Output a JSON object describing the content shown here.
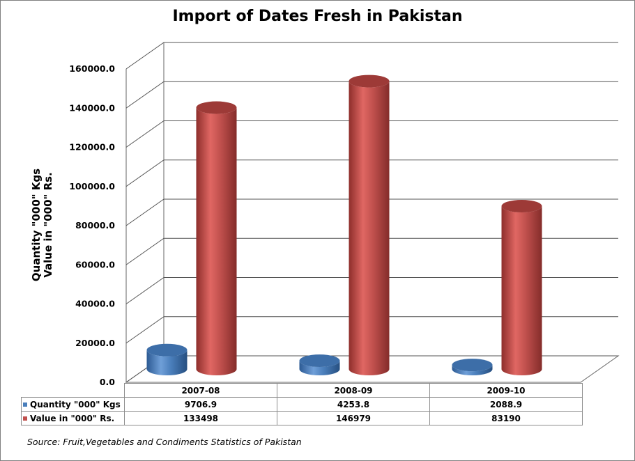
{
  "chart_data": {
    "type": "bar",
    "style": "3d-cylinder",
    "title": "Import of Dates Fresh in Pakistan",
    "ylabel_lines": [
      "Quantity \"000\" Kgs",
      "Value in \"000\" Rs."
    ],
    "xlabel": "",
    "categories": [
      "2007-08",
      "2008-09",
      "2009-10"
    ],
    "ylim": [
      0,
      160000
    ],
    "ytick_labels": [
      "0.0",
      "20000.0",
      "40000.0",
      "60000.0",
      "80000.0",
      "100000.0",
      "120000.0",
      "140000.0",
      "160000.0"
    ],
    "grid": true,
    "legend": "data-table",
    "series": [
      {
        "name": "Quantity \"000\" Kgs",
        "color": "#4a7ebb",
        "values": [
          9706.9,
          4253.8,
          2088.9
        ],
        "labels": [
          "9706.9",
          "4253.8",
          "2088.9"
        ]
      },
      {
        "name": "Value in \"000\" Rs.",
        "color": "#c0504d",
        "values": [
          133498,
          146979,
          83190
        ],
        "labels": [
          "133498",
          "146979",
          "83190"
        ]
      }
    ]
  },
  "source": "Source: Fruit,Vegetables and Condiments Statistics of Pakistan"
}
